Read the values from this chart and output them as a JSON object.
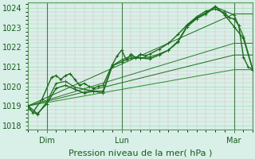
{
  "xlabel": "Pression niveau de la mer( hPa )",
  "bg_color": "#d8f0e8",
  "xlim": [
    0,
    96
  ],
  "ylim": [
    1017.8,
    1024.3
  ],
  "yticks": [
    1018,
    1019,
    1020,
    1021,
    1022,
    1023,
    1024
  ],
  "xtick_labels": [
    "Dim",
    "Lun",
    "Mar"
  ],
  "xtick_positions": [
    8,
    40,
    88
  ],
  "vline_positions": [
    8,
    40,
    88
  ],
  "series": [
    {
      "x": [
        0,
        2,
        6,
        10,
        12,
        14,
        16,
        18,
        20,
        22,
        24,
        26,
        28,
        30,
        32,
        36,
        38,
        40,
        42,
        44,
        46,
        48,
        50,
        52,
        56,
        60,
        64,
        68,
        72,
        76,
        80,
        84,
        86,
        88,
        90,
        92,
        94,
        96
      ],
      "y": [
        1019.0,
        1018.65,
        1019.35,
        1020.45,
        1020.55,
        1020.35,
        1020.55,
        1020.65,
        1020.35,
        1020.05,
        1020.15,
        1020.0,
        1019.9,
        1020.0,
        1020.05,
        1021.1,
        1021.55,
        1021.85,
        1021.35,
        1021.65,
        1021.45,
        1021.65,
        1021.55,
        1021.65,
        1021.9,
        1022.2,
        1022.65,
        1023.15,
        1023.55,
        1023.85,
        1023.95,
        1023.75,
        1023.5,
        1023.45,
        1023.1,
        1021.5,
        1021.0,
        1020.85
      ],
      "color": "#1a6b1a",
      "lw": 1.0,
      "marker": "+"
    },
    {
      "x": [
        0,
        4,
        8,
        12,
        16,
        20,
        24,
        28,
        32,
        36,
        40,
        44,
        48,
        52,
        56,
        60,
        64,
        68,
        72,
        76,
        80,
        84,
        88,
        92,
        96
      ],
      "y": [
        1018.85,
        1018.55,
        1019.2,
        1020.15,
        1020.25,
        1019.95,
        1019.85,
        1019.75,
        1019.65,
        1021.05,
        1021.35,
        1021.55,
        1021.45,
        1021.5,
        1021.65,
        1021.85,
        1022.25,
        1023.05,
        1023.45,
        1023.7,
        1024.05,
        1023.85,
        1023.65,
        1022.55,
        1020.85
      ],
      "color": "#2a7a2a",
      "lw": 1.0,
      "marker": "+"
    },
    {
      "x": [
        0,
        4,
        8,
        12,
        16,
        20,
        24,
        28,
        32,
        36,
        40,
        44,
        48,
        52,
        56,
        60,
        64,
        68,
        72,
        76,
        80,
        84,
        88,
        92,
        96
      ],
      "y": [
        1019.0,
        1018.6,
        1019.1,
        1019.9,
        1020.05,
        1019.85,
        1019.65,
        1019.75,
        1019.75,
        1021.05,
        1021.25,
        1021.45,
        1021.45,
        1021.4,
        1021.6,
        1021.85,
        1022.3,
        1023.1,
        1023.5,
        1023.75,
        1024.1,
        1023.65,
        1023.05,
        1022.45,
        1020.85
      ],
      "color": "#1a6b1a",
      "lw": 1.0,
      "marker": "+"
    },
    {
      "x": [
        0,
        88,
        96
      ],
      "y": [
        1019.0,
        1020.85,
        1020.85
      ],
      "color": "#2d8b2d",
      "lw": 0.7,
      "marker": null
    },
    {
      "x": [
        0,
        88,
        96
      ],
      "y": [
        1019.0,
        1021.6,
        1021.6
      ],
      "color": "#1a6b1a",
      "lw": 0.7,
      "marker": null
    },
    {
      "x": [
        0,
        88,
        96
      ],
      "y": [
        1019.0,
        1022.2,
        1022.2
      ],
      "color": "#2a7a2a",
      "lw": 0.7,
      "marker": null
    },
    {
      "x": [
        0,
        88,
        96
      ],
      "y": [
        1019.0,
        1023.7,
        1023.7
      ],
      "color": "#1a6b1a",
      "lw": 0.7,
      "marker": null
    }
  ]
}
